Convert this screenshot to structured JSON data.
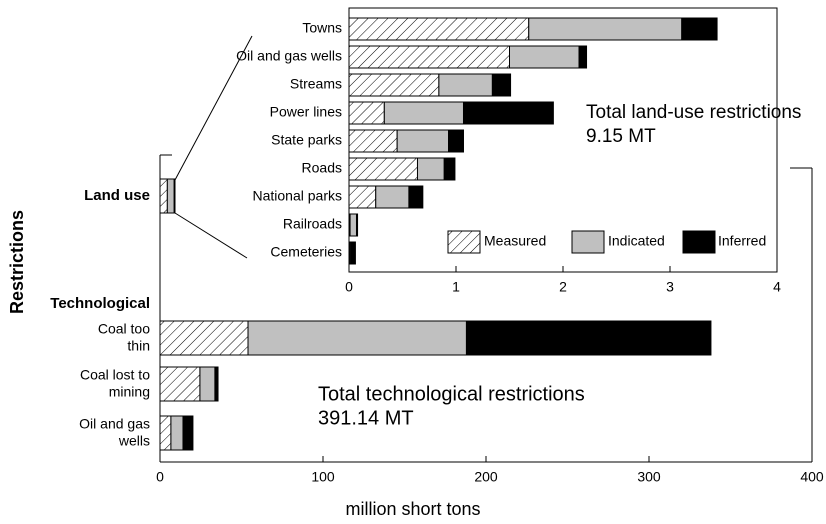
{
  "chart_data": [
    {
      "type": "bar",
      "orientation": "horizontal",
      "stacked": true,
      "y_label": "Restrictions",
      "x_label": "million short tons",
      "categories": [
        "Land use",
        "Technological",
        "Coal too thin",
        "Coal lost to mining",
        "Oil and gas wells"
      ],
      "series": [
        {
          "color": "#ffffff",
          "pattern": "hatch",
          "values": [
            4.5,
            null,
            54,
            24.5,
            6.7
          ]
        },
        {
          "color": "#c0c0c0",
          "values": [
            4.2,
            null,
            134,
            9.2,
            7.4
          ]
        },
        {
          "color": "#000000",
          "values": [
            0.5,
            null,
            150,
            1.9,
            6.1
          ]
        }
      ],
      "xlim": [
        0,
        400
      ],
      "xticks": [
        0,
        100,
        200,
        300,
        400
      ],
      "annotation": [
        "Total technological restrictions",
        "391.14 MT"
      ]
    },
    {
      "type": "bar",
      "orientation": "horizontal",
      "stacked": true,
      "categories": [
        "Towns",
        "Oil and gas wells",
        "Streams",
        "Power lines",
        "State parks",
        "Roads",
        "National parks",
        "Railroads",
        "Cemeteries"
      ],
      "series": [
        {
          "name": "Measured",
          "color": "#ffffff",
          "pattern": "hatch",
          "values": [
            1.68,
            1.5,
            0.84,
            0.33,
            0.45,
            0.64,
            0.25,
            0.01,
            0.01
          ]
        },
        {
          "name": "Indicated",
          "color": "#c0c0c0",
          "values": [
            1.43,
            0.65,
            0.5,
            0.74,
            0.48,
            0.25,
            0.31,
            0.06,
            0.01
          ]
        },
        {
          "name": "Inferred",
          "color": "#000000",
          "values": [
            0.33,
            0.07,
            0.17,
            0.84,
            0.14,
            0.1,
            0.13,
            0.01,
            0.04
          ]
        }
      ],
      "xlim": [
        0,
        4
      ],
      "xticks": [
        0,
        1,
        2,
        3,
        4
      ],
      "annotation": [
        "Total land-use restrictions",
        "9.15 MT"
      ],
      "legend": "bottom right"
    }
  ]
}
